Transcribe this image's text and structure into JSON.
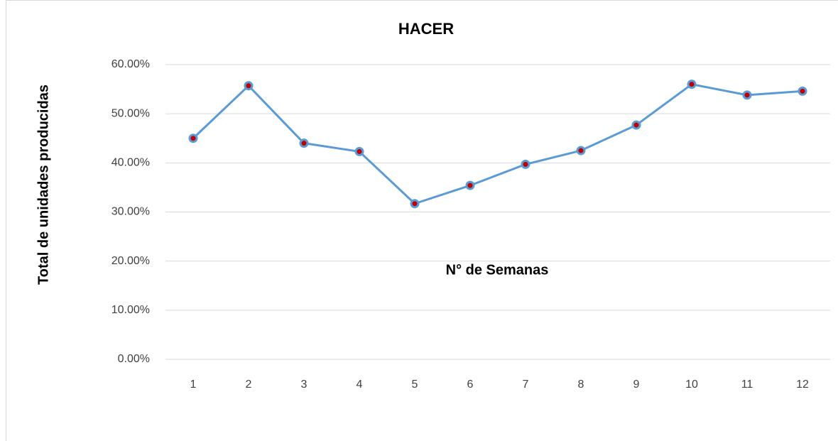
{
  "chart_data": {
    "type": "line",
    "title": "HACER",
    "x_label": "N° de Semanas",
    "y_label": "Total de unidades producidas",
    "categories": [
      "1",
      "2",
      "3",
      "4",
      "5",
      "6",
      "7",
      "8",
      "9",
      "10",
      "11",
      "12"
    ],
    "series": [
      {
        "color": "#5b9bd5",
        "marker_color": "#c00000",
        "values": [
          45.0,
          55.7,
          44.0,
          42.3,
          31.7,
          35.4,
          39.7,
          42.5,
          47.7,
          56.0,
          53.8,
          54.6
        ]
      }
    ],
    "ylim": [
      0,
      60
    ],
    "yticks": [
      {
        "value": 0,
        "label": "0.00%"
      },
      {
        "value": 10,
        "label": "10.00%"
      },
      {
        "value": 20,
        "label": "20.00%"
      },
      {
        "value": 30,
        "label": "30.00%"
      },
      {
        "value": 40,
        "label": "40.00%"
      },
      {
        "value": 50,
        "label": "50.00%"
      },
      {
        "value": 60,
        "label": "60.00%"
      }
    ],
    "grid": true
  }
}
